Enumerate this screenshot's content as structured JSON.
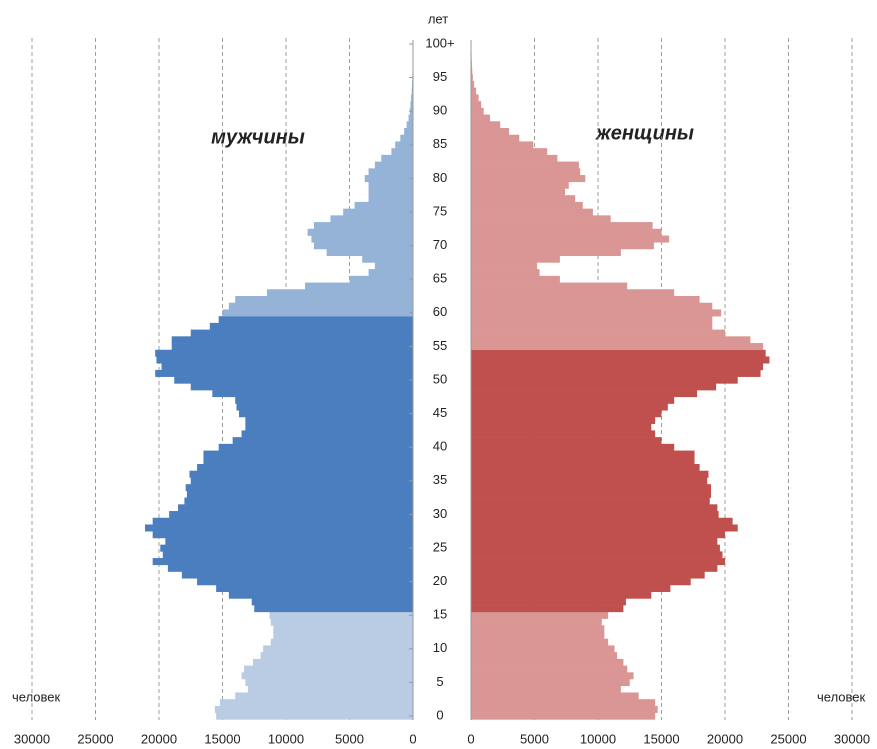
{
  "chart_data": {
    "type": "pyramid",
    "y_label": "лет",
    "x_label": "человек",
    "categories": [
      "0",
      null,
      null,
      null,
      null,
      "5",
      null,
      null,
      null,
      null,
      "10",
      null,
      null,
      null,
      null,
      "15",
      null,
      null,
      null,
      null,
      "20",
      null,
      null,
      null,
      null,
      "25",
      null,
      null,
      null,
      null,
      "30",
      null,
      null,
      null,
      null,
      "35",
      null,
      null,
      null,
      null,
      "40",
      null,
      null,
      null,
      null,
      "45",
      null,
      null,
      null,
      null,
      "50",
      null,
      null,
      null,
      null,
      "55",
      null,
      null,
      null,
      null,
      "60",
      null,
      null,
      null,
      null,
      "65",
      null,
      null,
      null,
      null,
      "70",
      null,
      null,
      null,
      null,
      "75",
      null,
      null,
      null,
      null,
      "80",
      null,
      null,
      null,
      null,
      "85",
      null,
      null,
      null,
      null,
      "90",
      null,
      null,
      null,
      null,
      "95",
      null,
      null,
      null,
      null,
      "100+"
    ],
    "xlim": [
      0,
      30000
    ],
    "xticks": [
      0,
      5000,
      10000,
      15000,
      20000,
      25000,
      30000
    ],
    "grid": true,
    "series": [
      {
        "name": "мужчины",
        "side": "left",
        "bands": [
          {
            "until": 15,
            "color": "#b9cce4"
          },
          {
            "until": 59,
            "color": "#4a7ebf"
          },
          {
            "until": 100,
            "color": "#95b3d7"
          }
        ],
        "values": [
          15500,
          15600,
          15200,
          14000,
          13000,
          13200,
          13500,
          13300,
          12600,
          12000,
          11800,
          11200,
          11000,
          11000,
          11200,
          11300,
          12500,
          12700,
          14500,
          15500,
          17000,
          18200,
          19300,
          20500,
          19700,
          19900,
          19500,
          20500,
          21100,
          20500,
          19200,
          18500,
          18000,
          17800,
          17900,
          17500,
          17600,
          17000,
          16500,
          16500,
          15300,
          14200,
          13500,
          13200,
          13200,
          13700,
          13900,
          14000,
          15800,
          17500,
          18800,
          20300,
          19800,
          20200,
          20300,
          19000,
          19000,
          17500,
          16000,
          15300,
          15000,
          14500,
          14000,
          11500,
          8500,
          5000,
          3500,
          3000,
          4000,
          6800,
          7800,
          8000,
          8300,
          7800,
          6500,
          5500,
          4600,
          3500,
          3500,
          3500,
          3800,
          3500,
          3000,
          2500,
          1700,
          1400,
          1000,
          700,
          500,
          350,
          250,
          200,
          150,
          100,
          80,
          60,
          40,
          30,
          20,
          10,
          10
        ]
      },
      {
        "name": "женщины",
        "side": "right",
        "bands": [
          {
            "until": 15,
            "color": "#d99694"
          },
          {
            "until": 54,
            "color": "#c0504d"
          },
          {
            "until": 100,
            "color": "#d99694"
          }
        ],
        "values": [
          14500,
          14700,
          14500,
          13200,
          11800,
          12500,
          12800,
          12300,
          12000,
          11500,
          11300,
          10800,
          10500,
          10500,
          10300,
          10800,
          12000,
          12200,
          14200,
          15700,
          17300,
          18400,
          19400,
          20000,
          19800,
          19600,
          19400,
          20000,
          21000,
          20600,
          19500,
          19400,
          18800,
          18900,
          18900,
          18600,
          18700,
          18000,
          17600,
          17600,
          16000,
          15000,
          14500,
          14200,
          14500,
          15000,
          15500,
          16000,
          17800,
          19300,
          21000,
          22800,
          23000,
          23500,
          23200,
          23000,
          22000,
          20000,
          19000,
          19000,
          19700,
          19000,
          18000,
          16000,
          12300,
          7000,
          5400,
          5200,
          7000,
          11800,
          14400,
          15600,
          15000,
          14300,
          11000,
          9600,
          8800,
          8200,
          7400,
          7700,
          9000,
          8600,
          8500,
          6800,
          6000,
          4900,
          3800,
          3000,
          2300,
          1500,
          1000,
          800,
          600,
          400,
          250,
          150,
          100,
          70,
          50,
          30,
          20
        ]
      }
    ]
  }
}
